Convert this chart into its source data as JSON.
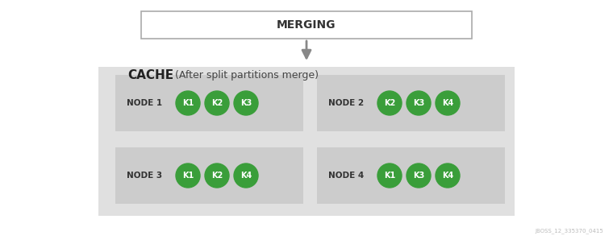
{
  "bg_color": "#ffffff",
  "cache_box_color": "#e0e0e0",
  "node_box_color": "#cccccc",
  "green_circle_color": "#3a9e3a",
  "title_text": "MERGING",
  "cache_label_bold": "CACHE",
  "cache_label_normal": " (After split partitions merge)",
  "nodes": [
    {
      "label": "NODE 1",
      "keys": [
        "K1",
        "K2",
        "K3"
      ],
      "col": 0,
      "row": 0
    },
    {
      "label": "NODE 2",
      "keys": [
        "K2",
        "K3",
        "K4"
      ],
      "col": 1,
      "row": 0
    },
    {
      "label": "NODE 3",
      "keys": [
        "K1",
        "K2",
        "K4"
      ],
      "col": 0,
      "row": 1
    },
    {
      "label": "NODE 4",
      "keys": [
        "K1",
        "K3",
        "K4"
      ],
      "col": 1,
      "row": 1
    }
  ],
  "watermark": "JBOSS_12_335370_0415",
  "fig_width": 7.6,
  "fig_height": 2.98,
  "dpi": 100
}
